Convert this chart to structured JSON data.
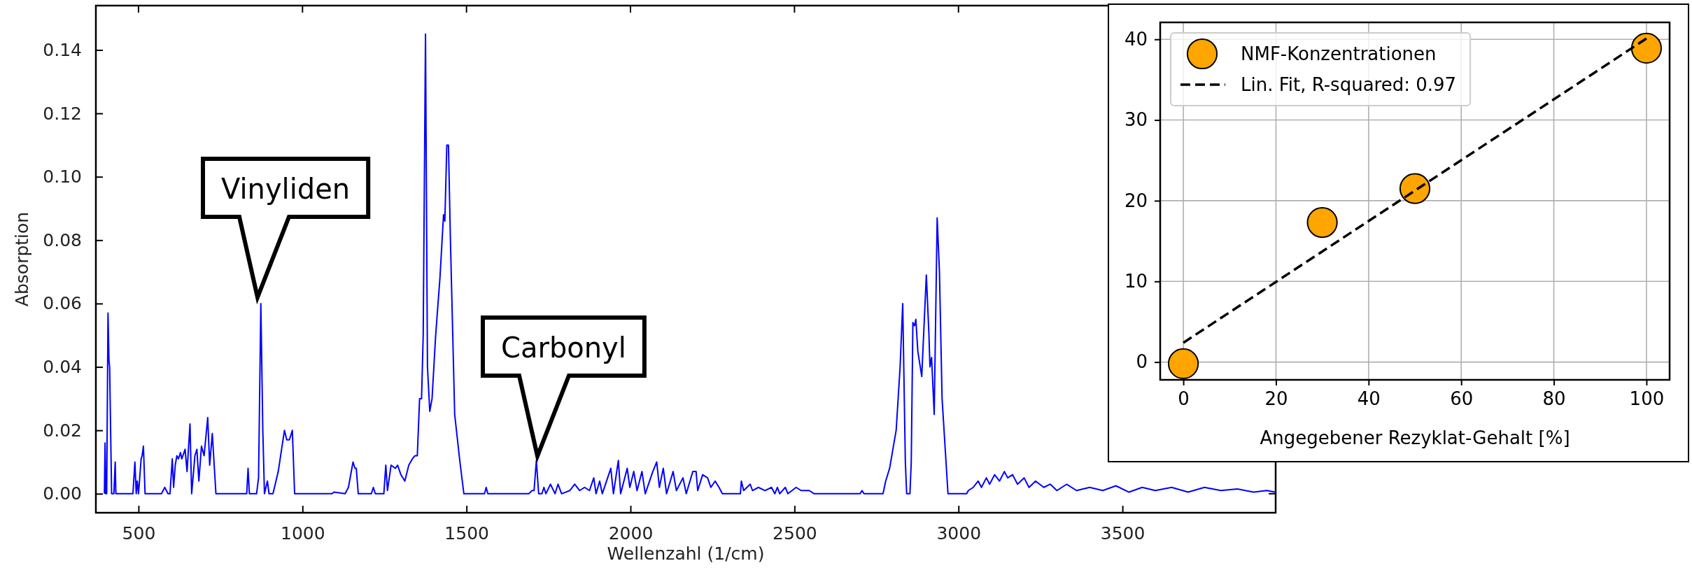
{
  "chart_data": [
    {
      "type": "line",
      "xlabel": "Wellenzahl (1/cm)",
      "ylabel": "Absorption",
      "xlim": [
        370,
        3967
      ],
      "xticks": [
        500,
        1000,
        1500,
        2000,
        2500,
        3000,
        3500
      ],
      "ylim": [
        -0.006,
        0.154
      ],
      "yticks": [
        {
          "value": 0,
          "label": "0.00"
        },
        {
          "value": 0.02,
          "label": "0.02"
        },
        {
          "value": 0.04,
          "label": "0.04"
        },
        {
          "value": 0.06,
          "label": "0.06"
        },
        {
          "value": 0.08,
          "label": "0.08"
        },
        {
          "value": 0.1,
          "label": "0.10"
        },
        {
          "value": 0.12,
          "label": "0.12"
        },
        {
          "value": 0.14,
          "label": "0.14"
        }
      ],
      "grid": false,
      "legend": false,
      "annotations": [
        "Vinyliden",
        "Carbonyl"
      ],
      "series": [
        {
          "color": "#0000ff",
          "x": [
            396,
            398,
            400,
            403,
            407,
            410,
            412,
            418,
            425,
            429,
            431,
            483,
            489,
            493,
            496,
            500,
            508,
            511,
            515,
            520,
            570,
            580,
            585,
            590,
            596,
            603,
            607,
            612,
            617,
            622,
            628,
            632,
            642,
            648,
            657,
            662,
            672,
            678,
            684,
            692,
            700,
            711,
            717,
            725,
            736,
            830,
            834,
            838,
            860,
            866,
            873,
            879,
            884,
            893,
            898,
            910,
            926,
            945,
            952,
            960,
            969,
            976,
            1090,
            1096,
            1130,
            1140,
            1154,
            1160,
            1164,
            1170,
            1210,
            1216,
            1222,
            1248,
            1254,
            1259,
            1270,
            1283,
            1290,
            1300,
            1312,
            1324,
            1335,
            1343,
            1350,
            1357,
            1363,
            1368,
            1375,
            1381,
            1388,
            1395,
            1406,
            1419,
            1430,
            1434,
            1440,
            1445,
            1451,
            1464,
            1480,
            1492,
            1555,
            1560,
            1565,
            1690,
            1700,
            1706,
            1713,
            1720,
            1730,
            1736,
            1742,
            1756,
            1770,
            1779,
            1790,
            1815,
            1830,
            1845,
            1860,
            1875,
            1888,
            1895,
            1906,
            1914,
            1940,
            1948,
            1963,
            1970,
            1990,
            1998,
            2010,
            2020,
            2035,
            2045,
            2068,
            2080,
            2088,
            2100,
            2110,
            2130,
            2140,
            2160,
            2170,
            2190,
            2200,
            2205,
            2220,
            2235,
            2245,
            2258,
            2270,
            2280,
            2335,
            2338,
            2345,
            2365,
            2372,
            2390,
            2410,
            2430,
            2440,
            2448,
            2455,
            2472,
            2480,
            2505,
            2520,
            2545,
            2560,
            2700,
            2706,
            2712,
            2770,
            2778,
            2790,
            2810,
            2822,
            2830,
            2838,
            2842,
            2852,
            2856,
            2861,
            2866,
            2870,
            2876,
            2888,
            2902,
            2910,
            2913,
            2918,
            2926,
            2935,
            2942,
            2950,
            2968,
            3025,
            3030,
            3045,
            3060,
            3070,
            3085,
            3095,
            3110,
            3125,
            3140,
            3150,
            3165,
            3180,
            3200,
            3215,
            3235,
            3260,
            3280,
            3300,
            3330,
            3360,
            3400,
            3440,
            3480,
            3520,
            3560,
            3600,
            3650,
            3700,
            3750,
            3800,
            3850,
            3900,
            3940,
            3966
          ],
          "values": [
            0,
            0.016,
            0,
            0,
            0.057,
            0.042,
            0.04,
            0,
            0,
            0.01,
            0,
            0,
            0.01,
            0,
            0.004,
            0,
            0.011,
            0.012,
            0.015,
            0,
            0,
            0.002,
            0.001,
            0,
            0,
            0.011,
            0.002,
            0.009,
            0.012,
            0.011,
            0.013,
            0.011,
            0.014,
            0.007,
            0.022,
            0,
            0.012,
            0.014,
            0.004,
            0.015,
            0.012,
            0.024,
            0.009,
            0.019,
            0,
            0,
            0.008,
            0,
            0,
            0.005,
            0.06,
            0.02,
            0,
            0.004,
            0,
            0,
            0.007,
            0.02,
            0.017,
            0.017,
            0.02,
            0,
            0,
            0.0005,
            0,
            0.002,
            0.01,
            0.008,
            0.008,
            0,
            0,
            0.002,
            0,
            0,
            0.009,
            0.001,
            0.009,
            0.008,
            0.009,
            0.006,
            0.004,
            0.009,
            0.011,
            0.012,
            0.012,
            0.03,
            0.03,
            0.05,
            0.145,
            0.04,
            0.026,
            0.03,
            0.05,
            0.068,
            0.088,
            0.086,
            0.11,
            0.11,
            0.08,
            0.025,
            0.01,
            0,
            0,
            0.002,
            0,
            0,
            0.001,
            0.001,
            0.0105,
            0,
            0,
            0.002,
            0,
            0.003,
            0,
            0.003,
            0,
            0.001,
            0.003,
            0.001,
            0.002,
            0.001,
            0.005,
            0,
            0.004,
            0,
            0.008,
            0,
            0.0105,
            0,
            0.008,
            0.002,
            0.007,
            0.001,
            0.007,
            0,
            0.007,
            0.01,
            0.002,
            0.008,
            0,
            0.007,
            0.001,
            0.005,
            0,
            0.007,
            0.007,
            0.001,
            0.006,
            0.005,
            0.002,
            0.004,
            0.002,
            0,
            0,
            0.004,
            0.001,
            0.003,
            0.001,
            0.002,
            0.001,
            0.002,
            0,
            0.002,
            0,
            0.002,
            0,
            0.002,
            0.001,
            0.001,
            0,
            0,
            0.001,
            0,
            0,
            0.004,
            0.008,
            0.02,
            0.04,
            0.06,
            0.01,
            0,
            0,
            0.01,
            0.054,
            0.053,
            0.055,
            0.045,
            0.037,
            0.069,
            0.05,
            0.04,
            0.043,
            0.025,
            0.087,
            0.07,
            0.03,
            0,
            0,
            0.001,
            0.002,
            0.004,
            0.002,
            0.005,
            0.003,
            0.006,
            0.004,
            0.007,
            0.005,
            0.006,
            0.003,
            0.005,
            0.002,
            0.004,
            0.002,
            0.003,
            0.001,
            0.003,
            0.001,
            0.002,
            0.001,
            0.0025,
            0.0005,
            0.002,
            0.001,
            0.002,
            0.0005,
            0.002,
            0.001,
            0.0015,
            0.0005,
            0.001,
            0.0005
          ]
        }
      ]
    },
    {
      "type": "scatter",
      "xlabel": "Angegebener Rezyklat-Gehalt [%]",
      "xlim": [
        -5,
        105
      ],
      "xticks": [
        0,
        20,
        40,
        60,
        80,
        100
      ],
      "ylim": [
        -2.2,
        42.1
      ],
      "yticks": [
        0,
        10,
        20,
        30,
        40
      ],
      "grid": true,
      "legend": "top left",
      "series": [
        {
          "name": "NMF-Konzentrationen",
          "marker": "circle",
          "color": "#ffa500",
          "x": [
            0,
            30,
            50,
            100
          ],
          "values": [
            -0.2,
            17.3,
            21.5,
            38.9
          ]
        },
        {
          "name": "Lin. Fit, R-squared: 0.97",
          "type": "line",
          "line_style": "dashed",
          "color": "#000000",
          "x": [
            0,
            100
          ],
          "values": [
            2.4,
            40.1
          ]
        }
      ]
    }
  ]
}
